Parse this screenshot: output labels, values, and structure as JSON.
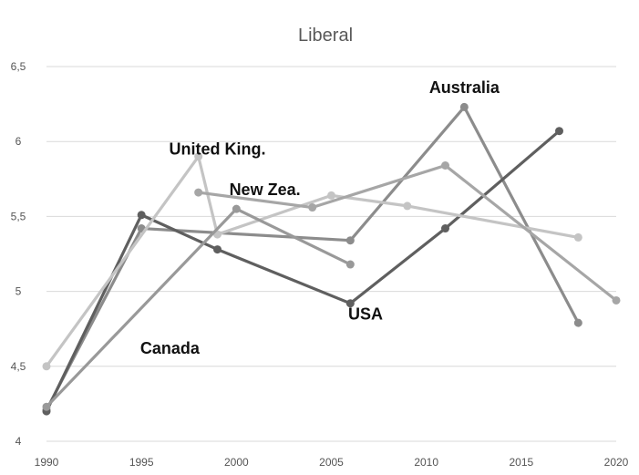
{
  "chart_data": {
    "type": "line",
    "title": "Liberal",
    "xlabel": "",
    "ylabel": "",
    "xlim": [
      1990,
      2020
    ],
    "ylim": [
      4,
      6.5
    ],
    "x_ticks": [
      "1990",
      "1995",
      "2000",
      "2005",
      "2010",
      "2015",
      "2020"
    ],
    "y_ticks": [
      "4",
      "4,5",
      "5",
      "5,5",
      "6",
      "6,5"
    ],
    "grid": true,
    "legend": "none",
    "series": [
      {
        "name": "Australia",
        "color": "#8c8c8c",
        "points": [
          [
            1990,
            4.21
          ],
          [
            1995,
            5.42
          ],
          [
            2006,
            5.34
          ],
          [
            2012,
            6.23
          ],
          [
            2018,
            4.79
          ]
        ]
      },
      {
        "name": "USA",
        "color": "#5f5f5f",
        "points": [
          [
            1990,
            4.2
          ],
          [
            1995,
            5.51
          ],
          [
            1999,
            5.28
          ],
          [
            2006,
            4.92
          ],
          [
            2011,
            5.42
          ],
          [
            2017,
            6.07
          ]
        ]
      },
      {
        "name": "United King.",
        "color": "#c4c4c4",
        "points": [
          [
            1990,
            4.5
          ],
          [
            1998,
            5.9
          ],
          [
            1999,
            5.38
          ],
          [
            2005,
            5.64
          ],
          [
            2009,
            5.57
          ],
          [
            2018,
            5.36
          ]
        ]
      },
      {
        "name": "New Zea.",
        "color": "#a6a6a6",
        "points": [
          [
            1998,
            5.66
          ],
          [
            2004,
            5.56
          ],
          [
            2011,
            5.84
          ],
          [
            2020,
            4.94
          ]
        ]
      },
      {
        "name": "Canada",
        "color": "#999999",
        "points": [
          [
            1990,
            4.23
          ],
          [
            2000,
            5.55
          ],
          [
            2006,
            5.18
          ]
        ]
      }
    ],
    "annotations": [
      {
        "text": "Australia",
        "x": 2012,
        "y": 6.36
      },
      {
        "text": "United King.",
        "x": 1999,
        "y": 5.95
      },
      {
        "text": "New Zea.",
        "x": 2001.5,
        "y": 5.68
      },
      {
        "text": "USA",
        "x": 2006.8,
        "y": 4.85
      },
      {
        "text": "Canada",
        "x": 1996.5,
        "y": 4.62
      }
    ]
  }
}
